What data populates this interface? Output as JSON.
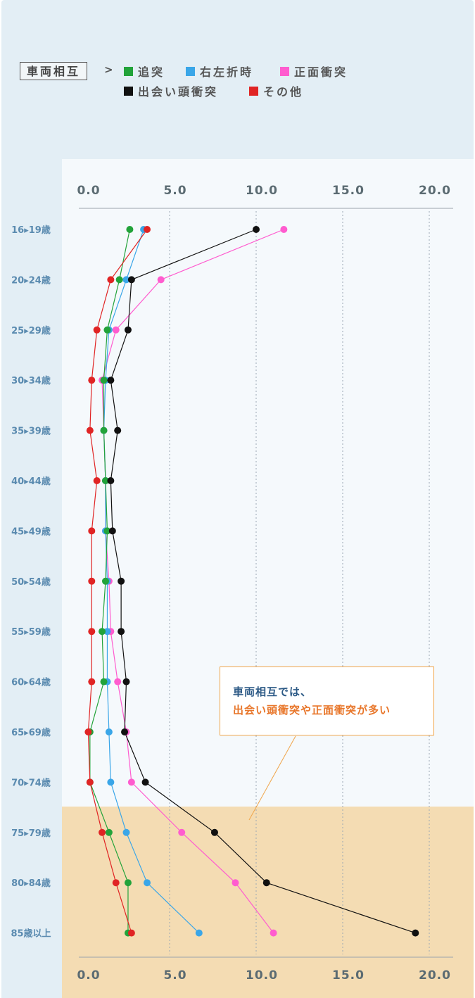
{
  "legend": {
    "title": "車両相互",
    "arrow": ">",
    "items": [
      {
        "label": "追突",
        "color": "#22a33a"
      },
      {
        "label": "右左折時",
        "color": "#3aa6e8"
      },
      {
        "label": "正面衝突",
        "color": "#ff5ccf"
      },
      {
        "label": "出会い頭衝突",
        "color": "#111111"
      },
      {
        "label": "その他",
        "color": "#e02424"
      }
    ]
  },
  "callout": {
    "line1": "車両相互では、",
    "line2": "出会い頭衝突や正面衝突が多い"
  },
  "chart_data": {
    "type": "line",
    "orientation": "horizontal",
    "categories": [
      "16▸19歳",
      "20▸24歳",
      "25▸29歳",
      "30▸34歳",
      "35▸39歳",
      "40▸44歳",
      "45▸49歳",
      "50▸54歳",
      "55▸59歳",
      "60▸64歳",
      "65▸69歳",
      "70▸74歳",
      "75▸79歳",
      "80▸84歳",
      "85歳以上"
    ],
    "xticks": [
      "0.0",
      "5.0",
      "10.0",
      "15.0",
      "20.0"
    ],
    "xlim": [
      0,
      20
    ],
    "grid": true,
    "legend_position": "top",
    "series": [
      {
        "name": "正面衝突",
        "color": "#ff5ccf",
        "values": [
          11.6,
          4.5,
          1.9,
          1.1,
          1.2,
          1.3,
          1.3,
          1.5,
          1.6,
          2.0,
          2.5,
          2.8,
          5.7,
          8.8,
          11.0
        ]
      },
      {
        "name": "右左折時",
        "color": "#3aa6e8",
        "values": [
          3.5,
          2.5,
          1.5,
          1.3,
          1.2,
          1.3,
          1.3,
          1.4,
          1.4,
          1.4,
          1.5,
          1.6,
          2.5,
          3.7,
          6.7
        ]
      },
      {
        "name": "追突",
        "color": "#22a33a",
        "values": [
          2.7,
          2.1,
          1.4,
          1.2,
          1.2,
          1.3,
          1.4,
          1.3,
          1.1,
          1.2,
          0.4,
          0.4,
          1.5,
          2.6,
          2.6
        ]
      },
      {
        "name": "その他",
        "color": "#e02424",
        "values": [
          3.7,
          1.6,
          0.8,
          0.5,
          0.4,
          0.8,
          0.5,
          0.5,
          0.5,
          0.5,
          0.3,
          0.4,
          1.1,
          1.9,
          2.8
        ]
      },
      {
        "name": "出会い頭衝突",
        "color": "#111111",
        "values": [
          10.0,
          2.8,
          2.6,
          1.6,
          2.0,
          1.6,
          1.7,
          2.2,
          2.2,
          2.5,
          2.4,
          3.6,
          7.6,
          10.6,
          19.2
        ]
      }
    ]
  }
}
